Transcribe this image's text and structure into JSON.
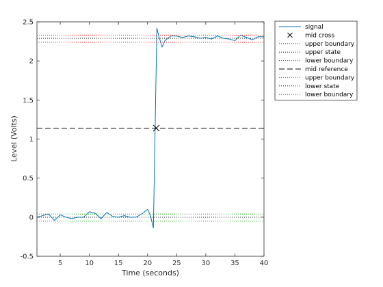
{
  "chart_data": {
    "type": "line",
    "title": "",
    "xlabel": "Time (seconds)",
    "ylabel": "Level (Volts)",
    "xlim": [
      1,
      40
    ],
    "ylim": [
      -0.5,
      2.5
    ],
    "xticks": [
      5,
      10,
      15,
      20,
      25,
      30,
      35,
      40
    ],
    "yticks": [
      -0.5,
      0,
      0.5,
      1,
      1.5,
      2,
      2.5
    ],
    "xtick_labels": [
      "5",
      "10",
      "15",
      "20",
      "25",
      "30",
      "35",
      "40"
    ],
    "ytick_labels": [
      "-0.5",
      "0",
      "0.5",
      "1",
      "1.5",
      "2",
      "2.5"
    ],
    "grid": false,
    "legend_position": "outside-top-right",
    "series": [
      {
        "name": "signal",
        "style": "solid",
        "color": "#0072bd",
        "x": [
          1,
          2,
          3,
          4,
          5,
          6,
          7,
          8,
          9,
          10,
          11,
          12,
          13,
          14,
          15,
          16,
          17,
          18,
          19,
          20,
          20.5,
          21,
          21.6,
          22,
          22.5,
          23,
          24,
          25,
          26,
          27,
          28,
          29,
          30,
          31,
          32,
          33,
          34,
          35,
          36,
          37,
          38,
          39,
          40
        ],
        "y": [
          0,
          0.02,
          0.04,
          -0.04,
          0.03,
          0.0,
          -0.02,
          0.0,
          0.0,
          0.07,
          0.05,
          -0.02,
          0.06,
          0.01,
          0.0,
          0.02,
          0.0,
          0.0,
          0.04,
          0.1,
          0.02,
          -0.14,
          2.42,
          2.3,
          2.18,
          2.26,
          2.32,
          2.32,
          2.3,
          2.32,
          2.31,
          2.29,
          2.3,
          2.28,
          2.32,
          2.29,
          2.28,
          2.26,
          2.33,
          2.3,
          2.27,
          2.31,
          2.31
        ]
      },
      {
        "name": "mid cross",
        "style": "marker-x",
        "color": "#000000",
        "x": [
          21.5
        ],
        "y": [
          1.14
        ]
      },
      {
        "name": "upper boundary",
        "style": "dotted",
        "color": "#ff0000",
        "y_const": 2.33
      },
      {
        "name": "upper state",
        "style": "dotted",
        "color": "#000000",
        "y_const": 2.29
      },
      {
        "name": "lower boundary",
        "style": "dotted",
        "color": "#ff0000",
        "y_const": 2.24
      },
      {
        "name": "mid reference",
        "style": "dashed",
        "color": "#000000",
        "y_const": 1.14
      },
      {
        "name": "upper boundary",
        "style": "dotted",
        "color": "#00a000",
        "y_const": 0.04
      },
      {
        "name": "lower state",
        "style": "dotted",
        "color": "#000000",
        "y_const": 0.0
      },
      {
        "name": "lower boundary",
        "style": "dotted",
        "color": "#00a000",
        "y_const": -0.05
      }
    ]
  }
}
